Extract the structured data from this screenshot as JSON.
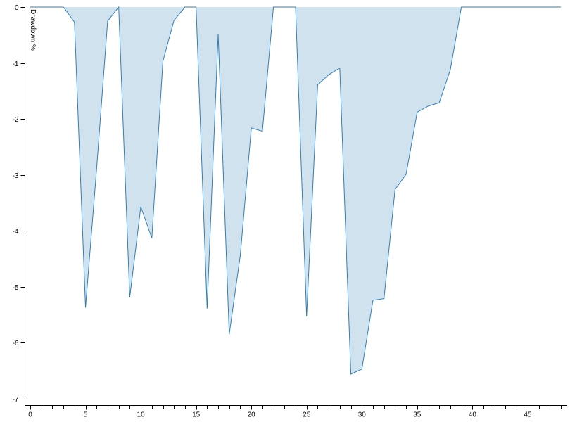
{
  "chart_data": {
    "type": "area",
    "title": "",
    "xlabel": "",
    "ylabel": "Drawdown %",
    "x": [
      0,
      1,
      2,
      3,
      4,
      5,
      6,
      7,
      8,
      9,
      10,
      11,
      12,
      13,
      14,
      15,
      16,
      17,
      18,
      19,
      20,
      21,
      22,
      23,
      24,
      25,
      26,
      27,
      28,
      29,
      30,
      31,
      32,
      33,
      34,
      35,
      36,
      37,
      38,
      39,
      40,
      41,
      42,
      43,
      44,
      45,
      46,
      47,
      48
    ],
    "y": [
      0,
      0,
      0,
      0,
      -0.27,
      -5.37,
      -2.9,
      -0.25,
      0,
      -5.19,
      -3.57,
      -4.13,
      -0.97,
      -0.24,
      0,
      0,
      -5.39,
      -0.48,
      -5.85,
      -4.44,
      -2.16,
      -2.22,
      0,
      0,
      0,
      -5.53,
      -1.39,
      -1.21,
      -1.09,
      -6.56,
      -6.47,
      -5.24,
      -5.21,
      -3.26,
      -2.99,
      -1.88,
      -1.77,
      -1.71,
      -1.12,
      0,
      0,
      0,
      0,
      0,
      0,
      0,
      0,
      0,
      0
    ],
    "xlim": [
      0,
      48
    ],
    "ylim": [
      -7.25,
      0
    ],
    "xticks_labeled": [
      0,
      5,
      10,
      15,
      20,
      25,
      30,
      35,
      40,
      45
    ],
    "yticks": [
      0,
      -1,
      -2,
      -3,
      -4,
      -5,
      -6,
      -7
    ],
    "grid": false,
    "legend": "none",
    "colors": {
      "fill": "#d1e2ef",
      "line": "#2f7fb6",
      "axis": "#000000"
    }
  }
}
